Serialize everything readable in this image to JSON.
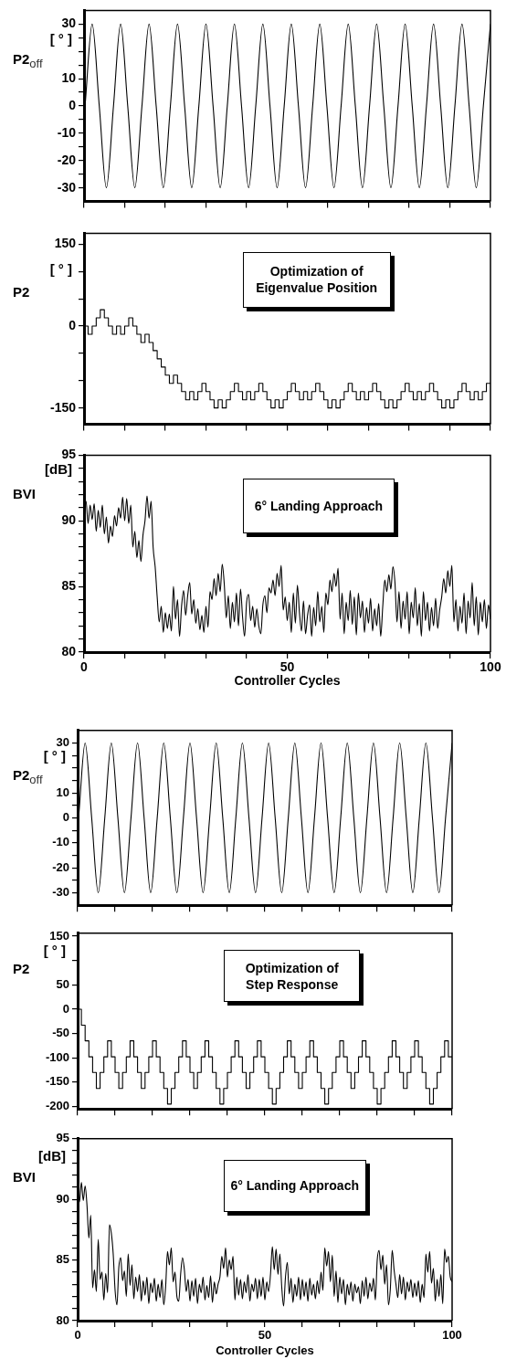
{
  "chart_data": [
    {
      "type": "line",
      "ylabel": "[ ° ]\nP2$_{off}$",
      "color": "#000000",
      "xlim": [
        0,
        100
      ],
      "ylim": [
        -35,
        35
      ],
      "xticks": [
        {
          "value": 0,
          "label": null
        },
        {
          "value": 10,
          "label": null
        },
        {
          "value": 20,
          "label": null
        },
        {
          "value": 30,
          "label": null
        },
        {
          "value": 40,
          "label": null
        },
        {
          "value": 50,
          "label": null
        },
        {
          "value": 60,
          "label": null
        },
        {
          "value": 70,
          "label": null
        },
        {
          "value": 80,
          "label": null
        },
        {
          "value": 90,
          "label": null
        },
        {
          "value": 100,
          "label": null
        }
      ],
      "yticks": [
        30,
        {
          "value": 25,
          "label": null
        },
        {
          "value": 20,
          "label": null
        },
        {
          "value": 15,
          "label": null
        },
        10,
        {
          "value": 5,
          "label": null
        },
        0,
        {
          "value": -5,
          "label": null
        },
        -10,
        {
          "value": -15,
          "label": null
        },
        -20,
        {
          "value": -25,
          "label": null
        },
        -30
      ],
      "tick_labels": "y",
      "x": [
        0,
        0.25,
        2,
        3.75,
        5.5,
        7.25,
        9,
        10.75,
        12.5,
        14.25,
        16,
        17.75,
        19.5,
        21.25,
        23,
        24.75,
        26.5,
        28.25,
        30,
        31.75,
        33.5,
        35.25,
        37,
        38.75,
        40.5,
        42.25,
        44,
        45.75,
        47.5,
        49.25,
        51,
        52.75,
        54.5,
        56.25,
        58,
        59.75,
        61.5,
        63.25,
        65,
        66.75,
        68.5,
        70.25,
        72,
        73.75,
        75.5,
        77.25,
        79,
        80.75,
        82.5,
        84.25,
        86,
        87.75,
        89.5,
        91.25,
        93,
        94.75,
        96.5,
        98.25,
        100
      ],
      "values": [
        -4,
        0,
        30,
        0,
        -30,
        0,
        30,
        0,
        -30,
        0,
        30,
        0,
        -30,
        0,
        30,
        0,
        -30,
        0,
        30,
        0,
        -30,
        0,
        30,
        0,
        -30,
        0,
        30,
        0,
        -30,
        0,
        30,
        0,
        -30,
        0,
        30,
        0,
        -30,
        0,
        30,
        0,
        -30,
        0,
        30,
        0,
        -30,
        0,
        30,
        0,
        -30,
        0,
        30,
        0,
        -30,
        0,
        30,
        0,
        -30,
        0,
        30
      ]
    },
    {
      "type": "step",
      "ylabel": "[ ° ]\nP2",
      "color": "#000000",
      "xlim": [
        0,
        100
      ],
      "ylim": [
        -180,
        170
      ],
      "annotations": [
        "Optimization of\nEigenvalue Position"
      ],
      "xticks": [
        {
          "value": 0,
          "label": null
        },
        {
          "value": 10,
          "label": null
        },
        {
          "value": 20,
          "label": null
        },
        {
          "value": 30,
          "label": null
        },
        {
          "value": 40,
          "label": null
        },
        {
          "value": 50,
          "label": null
        },
        {
          "value": 60,
          "label": null
        },
        {
          "value": 70,
          "label": null
        },
        {
          "value": 80,
          "label": null
        },
        {
          "value": 90,
          "label": null
        },
        {
          "value": 100,
          "label": null
        }
      ],
      "yticks": [
        150,
        {
          "value": 100,
          "label": null
        },
        {
          "value": 50,
          "label": null
        },
        0,
        {
          "value": -50,
          "label": null
        },
        {
          "value": -100,
          "label": null
        },
        -150
      ],
      "tick_labels": "y",
      "x": [
        0,
        1,
        2,
        3,
        4,
        5,
        6,
        7,
        8,
        9,
        10,
        11,
        12,
        13,
        14,
        15,
        16,
        17,
        18,
        19,
        20,
        21,
        22,
        23,
        24,
        25,
        26,
        27,
        28,
        29,
        30,
        31,
        32,
        33,
        34,
        35,
        36,
        37,
        38,
        39,
        40,
        41,
        42,
        43,
        44,
        45,
        46,
        47,
        48,
        49,
        50,
        51,
        52,
        53,
        54,
        55,
        56,
        57,
        58,
        59,
        60,
        61,
        62,
        63,
        64,
        65,
        66,
        67,
        68,
        69,
        70,
        71,
        72,
        73,
        74,
        75,
        76,
        77,
        78,
        79,
        80,
        81,
        82,
        83,
        84,
        85,
        86,
        87,
        88,
        89,
        90,
        91,
        92,
        93,
        94,
        95,
        96,
        97,
        98,
        99,
        100
      ],
      "values": [
        0,
        -15,
        0,
        15,
        30,
        15,
        0,
        -15,
        0,
        -15,
        0,
        15,
        0,
        -15,
        -30,
        -15,
        -30,
        -45,
        -60,
        -75,
        -90,
        -105,
        -90,
        -105,
        -120,
        -135,
        -120,
        -135,
        -120,
        -105,
        -120,
        -135,
        -150,
        -135,
        -150,
        -135,
        -120,
        -105,
        -120,
        -135,
        -120,
        -135,
        -120,
        -105,
        -120,
        -135,
        -150,
        -135,
        -150,
        -135,
        -120,
        -105,
        -120,
        -135,
        -120,
        -135,
        -120,
        -105,
        -120,
        -135,
        -150,
        -135,
        -150,
        -135,
        -120,
        -105,
        -120,
        -135,
        -120,
        -135,
        -120,
        -105,
        -120,
        -135,
        -150,
        -135,
        -150,
        -135,
        -120,
        -105,
        -120,
        -135,
        -120,
        -135,
        -120,
        -105,
        -120,
        -135,
        -150,
        -135,
        -150,
        -135,
        -120,
        -105,
        -120,
        -135,
        -120,
        -135,
        -120,
        -105,
        -105
      ]
    },
    {
      "type": "line",
      "ylabel": "[dB]\nBVI",
      "xlabel": "Controller Cycles",
      "color": "#000000",
      "xlim": [
        0,
        100
      ],
      "ylim": [
        80,
        95
      ],
      "annotations": [
        "6° Landing Approach"
      ],
      "xticks": [
        0,
        {
          "value": 10,
          "label": null
        },
        {
          "value": 20,
          "label": null
        },
        {
          "value": 30,
          "label": null
        },
        {
          "value": 40,
          "label": null
        },
        50,
        {
          "value": 60,
          "label": null
        },
        {
          "value": 70,
          "label": null
        },
        {
          "value": 80,
          "label": null
        },
        {
          "value": 90,
          "label": null
        },
        100
      ],
      "yticks": [
        95,
        {
          "value": 94,
          "label": null
        },
        {
          "value": 93,
          "label": null
        },
        {
          "value": 92,
          "label": null
        },
        {
          "value": 91,
          "label": null
        },
        90,
        {
          "value": 89,
          "label": null
        },
        {
          "value": 88,
          "label": null
        },
        {
          "value": 87,
          "label": null
        },
        {
          "value": 86,
          "label": null
        },
        85,
        {
          "value": 84,
          "label": null
        },
        {
          "value": 83,
          "label": null
        },
        {
          "value": 82,
          "label": null
        },
        {
          "value": 81,
          "label": null
        },
        80
      ],
      "x": [
        0,
        0.5,
        1,
        1.5,
        2,
        2.5,
        3,
        3.5,
        4,
        4.5,
        5,
        5.5,
        6,
        6.5,
        7,
        7.5,
        8,
        8.5,
        9,
        9.5,
        10,
        10.5,
        11,
        11.5,
        12,
        12.5,
        13,
        13.5,
        14,
        14.5,
        15,
        15.5,
        16,
        16.5,
        17,
        17.5,
        18,
        18.5,
        19,
        19.5,
        20,
        20.5,
        21,
        21.5,
        22,
        22.5,
        23,
        23.5,
        24,
        24.5,
        25,
        25.5,
        26,
        26.5,
        27,
        27.5,
        28,
        28.5,
        29,
        29.5,
        30,
        30.5,
        31,
        31.5,
        32,
        32.5,
        33,
        33.5,
        34,
        34.5,
        35,
        35.5,
        36,
        36.5,
        37,
        37.5,
        38,
        38.5,
        39,
        39.5,
        40,
        40.5,
        41,
        41.5,
        42,
        42.5,
        43,
        43.5,
        44,
        44.5,
        45,
        45.5,
        46,
        46.5,
        47,
        47.5,
        48,
        48.5,
        49,
        49.5,
        50,
        50.5,
        51,
        51.5,
        52,
        52.5,
        53,
        53.5,
        54,
        54.5,
        55,
        55.5,
        56,
        56.5,
        57,
        57.5,
        58,
        58.5,
        59,
        59.5,
        60,
        60.5,
        61,
        61.5,
        62,
        62.5,
        63,
        63.5,
        64,
        64.5,
        65,
        65.5,
        66,
        66.5,
        67,
        67.5,
        68,
        68.5,
        69,
        69.5,
        70,
        70.5,
        71,
        71.5,
        72,
        72.5,
        73,
        73.5,
        74,
        74.5,
        75,
        75.5,
        76,
        76.5,
        77,
        77.5,
        78,
        78.5,
        79,
        79.5,
        80,
        80.5,
        81,
        81.5,
        82,
        82.5,
        83,
        83.5,
        84,
        84.5,
        85,
        85.5,
        86,
        86.5,
        87,
        87.5,
        88,
        88.5,
        89,
        89.5,
        90,
        90.5,
        91,
        91.5,
        92,
        92.5,
        93,
        93.5,
        94,
        94.5,
        95,
        95.5,
        96,
        96.5,
        97,
        97.5,
        98,
        98.5,
        99,
        99.5,
        100
      ],
      "values": [
        90.5,
        91.5,
        89.8,
        91.2,
        90.1,
        91.3,
        89.2,
        90.8,
        89.5,
        91.2,
        89.0,
        90.3,
        88.3,
        89.6,
        88.8,
        90.4,
        89.6,
        91.0,
        90.2,
        91.8,
        90.0,
        91.7,
        89.8,
        91.2,
        88.0,
        89.2,
        87.2,
        88.5,
        86.9,
        88.9,
        90.0,
        91.9,
        90.2,
        91.5,
        88.0,
        86.5,
        84.2,
        82.3,
        83.5,
        81.5,
        83.0,
        81.8,
        82.9,
        81.6,
        85.0,
        82.5,
        84.0,
        81.2,
        83.5,
        84.7,
        82.8,
        84.3,
        85.3,
        82.9,
        84.0,
        82.2,
        83.3,
        81.7,
        82.8,
        81.5,
        83.5,
        81.9,
        84.6,
        84.0,
        85.6,
        84.3,
        86.0,
        84.6,
        86.7,
        85.2,
        82.6,
        84.3,
        81.8,
        83.8,
        82.3,
        84.5,
        82.0,
        84.8,
        82.7,
        81.2,
        83.8,
        84.4,
        82.4,
        83.5,
        81.9,
        83.3,
        82.0,
        81.4,
        83.6,
        84.3,
        83.0,
        84.9,
        84.5,
        85.5,
        84.3,
        86.0,
        85.0,
        86.6,
        83.2,
        84.2,
        82.4,
        83.8,
        81.5,
        84.5,
        82.2,
        85.1,
        83.0,
        81.6,
        83.9,
        81.4,
        82.8,
        83.6,
        81.2,
        83.4,
        82.0,
        84.6,
        82.3,
        83.5,
        81.5,
        84.5,
        83.6,
        85.5,
        84.6,
        86.0,
        85.0,
        86.4,
        82.5,
        84.5,
        81.4,
        83.8,
        82.4,
        84.7,
        82.1,
        84.2,
        81.3,
        84.5,
        82.6,
        83.9,
        81.5,
        83.4,
        82.2,
        84.1,
        81.6,
        83.3,
        82.0,
        83.7,
        81.2,
        83.5,
        85.5,
        84.6,
        85.9,
        84.8,
        86.5,
        85.3,
        82.3,
        84.6,
        81.8,
        83.9,
        82.5,
        84.6,
        81.4,
        83.8,
        82.6,
        84.9,
        82.0,
        83.7,
        81.2,
        84.6,
        82.4,
        83.8,
        81.6,
        83.4,
        82.0,
        84.1,
        81.8,
        83.2,
        84.2,
        85.6,
        84.5,
        86.2,
        85.0,
        86.6,
        82.3,
        84.0,
        81.6,
        83.5,
        82.2,
        84.5,
        81.4,
        83.9,
        82.6,
        85.3,
        82.0,
        84.2,
        81.3,
        83.8,
        82.3,
        84.0,
        81.8,
        83.6,
        82.5
      ]
    },
    {
      "type": "line",
      "ylabel": "[ ° ]\nP2$_{off}$",
      "color": "#000000",
      "xlim": [
        0,
        100
      ],
      "ylim": [
        -35,
        35
      ],
      "xticks": [
        {
          "value": 0,
          "label": null
        },
        {
          "value": 10,
          "label": null
        },
        {
          "value": 20,
          "label": null
        },
        {
          "value": 30,
          "label": null
        },
        {
          "value": 40,
          "label": null
        },
        {
          "value": 50,
          "label": null
        },
        {
          "value": 60,
          "label": null
        },
        {
          "value": 70,
          "label": null
        },
        {
          "value": 80,
          "label": null
        },
        {
          "value": 90,
          "label": null
        },
        {
          "value": 100,
          "label": null
        }
      ],
      "yticks": [
        30,
        {
          "value": 25,
          "label": null
        },
        {
          "value": 20,
          "label": null
        },
        {
          "value": 15,
          "label": null
        },
        10,
        {
          "value": 5,
          "label": null
        },
        0,
        {
          "value": -5,
          "label": null
        },
        -10,
        {
          "value": -15,
          "label": null
        },
        -20,
        {
          "value": -25,
          "label": null
        },
        -30
      ],
      "tick_labels": "y",
      "x": [
        0,
        0.25,
        2,
        3.75,
        5.5,
        7.25,
        9,
        10.75,
        12.5,
        14.25,
        16,
        17.75,
        19.5,
        21.25,
        23,
        24.75,
        26.5,
        28.25,
        30,
        31.75,
        33.5,
        35.25,
        37,
        38.75,
        40.5,
        42.25,
        44,
        45.75,
        47.5,
        49.25,
        51,
        52.75,
        54.5,
        56.25,
        58,
        59.75,
        61.5,
        63.25,
        65,
        66.75,
        68.5,
        70.25,
        72,
        73.75,
        75.5,
        77.25,
        79,
        80.75,
        82.5,
        84.25,
        86,
        87.75,
        89.5,
        91.25,
        93,
        94.75,
        96.5,
        98.25,
        100
      ],
      "values": [
        -4,
        0,
        30,
        0,
        -30,
        0,
        30,
        0,
        -30,
        0,
        30,
        0,
        -30,
        0,
        30,
        0,
        -30,
        0,
        30,
        0,
        -30,
        0,
        30,
        0,
        -30,
        0,
        30,
        0,
        -30,
        0,
        30,
        0,
        -30,
        0,
        30,
        0,
        -30,
        0,
        30,
        0,
        -30,
        0,
        30,
        0,
        -30,
        0,
        30,
        0,
        -30,
        0,
        30,
        0,
        -30,
        0,
        30,
        0,
        -30,
        0,
        30
      ]
    },
    {
      "type": "step",
      "ylabel": "[ ° ]\nP2",
      "color": "#000000",
      "xlim": [
        0,
        100
      ],
      "ylim": [
        -205,
        156
      ],
      "annotations": [
        "Optimization of\nStep Response"
      ],
      "xticks": [
        {
          "value": 0,
          "label": null
        },
        {
          "value": 10,
          "label": null
        },
        {
          "value": 20,
          "label": null
        },
        {
          "value": 30,
          "label": null
        },
        {
          "value": 40,
          "label": null
        },
        {
          "value": 50,
          "label": null
        },
        {
          "value": 60,
          "label": null
        },
        {
          "value": 70,
          "label": null
        },
        {
          "value": 80,
          "label": null
        },
        {
          "value": 90,
          "label": null
        },
        {
          "value": 100,
          "label": null
        }
      ],
      "yticks": [
        150,
        {
          "value": 100,
          "label": null
        },
        50,
        0,
        -50,
        -100,
        -150,
        -200
      ],
      "tick_labels": "y",
      "x": [
        0,
        1,
        2,
        3,
        4,
        5,
        6,
        7,
        8,
        9,
        10,
        11,
        12,
        13,
        14,
        15,
        16,
        17,
        18,
        19,
        20,
        21,
        22,
        23,
        24,
        25,
        26,
        27,
        28,
        29,
        30,
        31,
        32,
        33,
        34,
        35,
        36,
        37,
        38,
        39,
        40,
        41,
        42,
        43,
        44,
        45,
        46,
        47,
        48,
        49,
        50,
        51,
        52,
        53,
        54,
        55,
        56,
        57,
        58,
        59,
        60,
        61,
        62,
        63,
        64,
        65,
        66,
        67,
        68,
        69,
        70,
        71,
        72,
        73,
        74,
        75,
        76,
        77,
        78,
        79,
        80,
        81,
        82,
        83,
        84,
        85,
        86,
        87,
        88,
        89,
        90,
        91,
        92,
        93,
        94,
        95,
        96,
        97,
        98,
        99,
        100
      ],
      "values": [
        0,
        -33,
        -65,
        -98,
        -130,
        -163,
        -130,
        -98,
        -65,
        -98,
        -130,
        -163,
        -130,
        -98,
        -65,
        -98,
        -130,
        -163,
        -130,
        -98,
        -65,
        -98,
        -130,
        -163,
        -195,
        -163,
        -130,
        -98,
        -65,
        -98,
        -130,
        -163,
        -130,
        -98,
        -65,
        -98,
        -130,
        -163,
        -195,
        -163,
        -130,
        -98,
        -65,
        -98,
        -130,
        -163,
        -130,
        -98,
        -65,
        -98,
        -130,
        -163,
        -195,
        -163,
        -130,
        -98,
        -65,
        -98,
        -130,
        -163,
        -130,
        -98,
        -65,
        -98,
        -130,
        -163,
        -195,
        -163,
        -130,
        -98,
        -65,
        -98,
        -130,
        -163,
        -130,
        -98,
        -65,
        -98,
        -130,
        -163,
        -195,
        -163,
        -130,
        -98,
        -65,
        -98,
        -130,
        -163,
        -130,
        -98,
        -65,
        -98,
        -130,
        -163,
        -195,
        -163,
        -130,
        -98,
        -65,
        -98,
        -98
      ]
    },
    {
      "type": "line",
      "ylabel": "[dB]\nBVI",
      "xlabel": "Controller Cycles",
      "color": "#000000",
      "xlim": [
        0,
        100
      ],
      "ylim": [
        80,
        95
      ],
      "annotations": [
        "6° Landing Approach"
      ],
      "xticks": [
        0,
        {
          "value": 10,
          "label": null
        },
        {
          "value": 20,
          "label": null
        },
        {
          "value": 30,
          "label": null
        },
        {
          "value": 40,
          "label": null
        },
        50,
        {
          "value": 60,
          "label": null
        },
        {
          "value": 70,
          "label": null
        },
        {
          "value": 80,
          "label": null
        },
        {
          "value": 90,
          "label": null
        },
        100
      ],
      "yticks": [
        95,
        {
          "value": 94,
          "label": null
        },
        {
          "value": 93,
          "label": null
        },
        {
          "value": 92,
          "label": null
        },
        {
          "value": 91,
          "label": null
        },
        90,
        {
          "value": 89,
          "label": null
        },
        {
          "value": 88,
          "label": null
        },
        {
          "value": 87,
          "label": null
        },
        {
          "value": 86,
          "label": null
        },
        85,
        {
          "value": 84,
          "label": null
        },
        {
          "value": 83,
          "label": null
        },
        {
          "value": 82,
          "label": null
        },
        {
          "value": 81,
          "label": null
        },
        80
      ],
      "x": [
        0,
        0.5,
        1,
        1.5,
        2,
        2.5,
        3,
        3.5,
        4,
        4.5,
        5,
        5.5,
        6,
        6.5,
        7,
        7.5,
        8,
        8.5,
        9,
        9.5,
        10,
        10.5,
        11,
        11.5,
        12,
        12.5,
        13,
        13.5,
        14,
        14.5,
        15,
        15.5,
        16,
        16.5,
        17,
        17.5,
        18,
        18.5,
        19,
        19.5,
        20,
        20.5,
        21,
        21.5,
        22,
        22.5,
        23,
        23.5,
        24,
        24.5,
        25,
        25.5,
        26,
        26.5,
        27,
        27.5,
        28,
        28.5,
        29,
        29.5,
        30,
        30.5,
        31,
        31.5,
        32,
        32.5,
        33,
        33.5,
        34,
        34.5,
        35,
        35.5,
        36,
        36.5,
        37,
        37.5,
        38,
        38.5,
        39,
        39.5,
        40,
        40.5,
        41,
        41.5,
        42,
        42.5,
        43,
        43.5,
        44,
        44.5,
        45,
        45.5,
        46,
        46.5,
        47,
        47.5,
        48,
        48.5,
        49,
        49.5,
        50,
        50.5,
        51,
        51.5,
        52,
        52.5,
        53,
        53.5,
        54,
        54.5,
        55,
        55.5,
        56,
        56.5,
        57,
        57.5,
        58,
        58.5,
        59,
        59.5,
        60,
        60.5,
        61,
        61.5,
        62,
        62.5,
        63,
        63.5,
        64,
        64.5,
        65,
        65.5,
        66,
        66.5,
        67,
        67.5,
        68,
        68.5,
        69,
        69.5,
        70,
        70.5,
        71,
        71.5,
        72,
        72.5,
        73,
        73.5,
        74,
        74.5,
        75,
        75.5,
        76,
        76.5,
        77,
        77.5,
        78,
        78.5,
        79,
        79.5,
        80,
        80.5,
        81,
        81.5,
        82,
        82.5,
        83,
        83.5,
        84,
        84.5,
        85,
        85.5,
        86,
        86.5,
        87,
        87.5,
        88,
        88.5,
        89,
        89.5,
        90,
        90.5,
        91,
        91.5,
        92,
        92.5,
        93,
        93.5,
        94,
        94.5,
        95,
        95.5,
        96,
        96.5,
        97,
        97.5,
        98,
        98.5,
        99,
        99.5,
        100
      ],
      "values": [
        91.0,
        89.8,
        91.4,
        89.9,
        91.1,
        89.5,
        86.8,
        88.7,
        82.7,
        84.2,
        82.4,
        86.7,
        83.4,
        84.0,
        81.7,
        83.9,
        82.3,
        87.9,
        87.2,
        85.5,
        82.5,
        81.3,
        84.4,
        85.2,
        83.3,
        84.1,
        82.0,
        85.5,
        82.9,
        84.6,
        81.8,
        83.6,
        82.4,
        83.8,
        81.6,
        83.3,
        82.1,
        83.6,
        81.4,
        83.1,
        82.3,
        83.5,
        81.6,
        83.0,
        81.9,
        83.4,
        81.3,
        82.8,
        85.7,
        84.6,
        86.0,
        83.2,
        84.0,
        82.0,
        81.6,
        83.8,
        85.2,
        84.2,
        82.4,
        83.4,
        81.6,
        83.3,
        82.0,
        83.5,
        81.4,
        83.0,
        82.3,
        83.6,
        81.7,
        82.9,
        81.9,
        83.7,
        81.5,
        83.2,
        82.2,
        83.0,
        83.6,
        85.3,
        84.3,
        86.0,
        83.6,
        85.0,
        84.2,
        85.3,
        81.7,
        83.6,
        82.1,
        83.4,
        81.8,
        83.2,
        82.3,
        83.8,
        81.6,
        83.0,
        82.4,
        83.5,
        81.8,
        83.4,
        82.0,
        83.6,
        81.7,
        83.2,
        82.4,
        83.8,
        86.1,
        84.2,
        85.9,
        83.8,
        85.5,
        82.8,
        81.2,
        83.6,
        84.8,
        82.2,
        83.5,
        81.5,
        83.0,
        82.0,
        83.6,
        81.7,
        83.4,
        82.0,
        83.2,
        81.6,
        83.5,
        82.1,
        83.0,
        81.8,
        83.3,
        82.2,
        84.0,
        82.5,
        86.0,
        84.5,
        85.7,
        83.2,
        85.4,
        82.0,
        84.1,
        81.5,
        83.6,
        82.2,
        83.4,
        81.3,
        83.0,
        82.1,
        83.2,
        81.6,
        83.0,
        82.3,
        82.8,
        81.4,
        83.3,
        82.0,
        83.6,
        81.8,
        83.1,
        82.4,
        83.5,
        81.7,
        85.0,
        85.8,
        84.2,
        85.4,
        83.0,
        84.6,
        81.3,
        82.6,
        85.8,
        84.2,
        83.0,
        81.9,
        83.8,
        82.2,
        83.6,
        81.7,
        83.2,
        82.4,
        83.4,
        81.9,
        83.1,
        82.0,
        83.3,
        81.5,
        83.0,
        81.9,
        85.5,
        84.0,
        85.7,
        83.1,
        84.3,
        81.6,
        83.4,
        82.0,
        83.8,
        81.4,
        85.9,
        84.8,
        85.3,
        83.6,
        83.2
      ]
    }
  ]
}
